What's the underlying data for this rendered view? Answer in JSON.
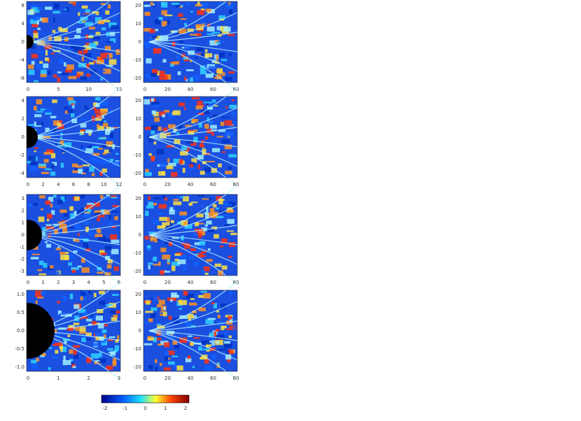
{
  "panels": [
    {
      "yticks": [
        "8",
        "4",
        "0",
        "-4",
        "-8"
      ],
      "xticks": [
        "0",
        "5",
        "10",
        "15"
      ]
    },
    {
      "yticks": [
        "20",
        "10",
        "0",
        "-10",
        "-20"
      ],
      "xticks": [
        "0",
        "20",
        "40",
        "60",
        "80"
      ]
    },
    {
      "yticks": [
        "4",
        "2",
        "0",
        "-2",
        "-4"
      ],
      "xticks": [
        "0",
        "2",
        "4",
        "6",
        "8",
        "10",
        "12"
      ]
    },
    {
      "yticks": [
        "20",
        "10",
        "0",
        "-10",
        "-20"
      ],
      "xticks": [
        "0",
        "20",
        "40",
        "60",
        "80"
      ]
    },
    {
      "yticks": [
        "3",
        "2",
        "1",
        "0",
        "-1",
        "-2",
        "-3"
      ],
      "xticks": [
        "0",
        "1",
        "2",
        "3",
        "4",
        "5",
        "6"
      ]
    },
    {
      "yticks": [
        "20",
        "10",
        "0",
        "-10",
        "-20"
      ],
      "xticks": [
        "0",
        "20",
        "40",
        "60",
        "80"
      ]
    },
    {
      "yticks": [
        "1.0",
        "0.5",
        "0.0",
        "-0.5",
        "-1.0"
      ],
      "xticks": [
        "0",
        "1",
        "2",
        "3"
      ]
    },
    {
      "yticks": [
        "20",
        "10",
        "0",
        "-10",
        "-20"
      ],
      "xticks": [
        "0",
        "20",
        "40",
        "60",
        "80"
      ]
    }
  ],
  "colorbar": {
    "ticks": [
      "-2",
      "-1",
      "0",
      "1",
      "2"
    ]
  }
}
